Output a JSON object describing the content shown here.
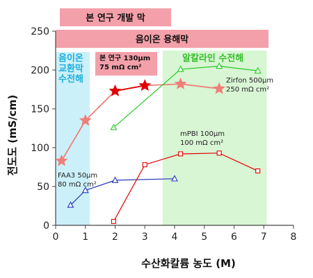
{
  "chart_data": {
    "type": "line",
    "xlabel": "수산화칼륨 농도 (M)",
    "ylabel": "전도도 (mS/cm)",
    "xlim": [
      0,
      8
    ],
    "ylim": [
      0,
      250
    ],
    "xticks": [
      "0",
      "1",
      "2",
      "3",
      "4",
      "5",
      "6",
      "7",
      "8"
    ],
    "yticks": [
      "0",
      "50",
      "100",
      "150",
      "200",
      "250"
    ],
    "bands": [
      {
        "label": "본 연구 개발 막",
        "color": "#f4a0aa"
      },
      {
        "label": "음이온 용해막",
        "color": "#f4a0aa"
      }
    ],
    "regions": [
      {
        "label": [
          "음이온",
          "교환막",
          "수전해"
        ],
        "x_range": [
          0,
          1.15
        ],
        "color": "#ccf0fa",
        "text_color": "#1aaedc"
      },
      {
        "label": [
          "알칼라인 수전해"
        ],
        "x_range": [
          3.6,
          7.1
        ],
        "color": "#d8f5d4",
        "text_color": "#35c02a"
      }
    ],
    "series": [
      {
        "color": "#ef7f78",
        "marker": "star",
        "points": [
          [
            0.2,
            83
          ],
          [
            1.0,
            135
          ],
          [
            2.0,
            173
          ],
          [
            3.0,
            180
          ],
          [
            4.2,
            182
          ],
          [
            5.5,
            176
          ]
        ]
      },
      {
        "color": "#e00000",
        "marker": "star-filled",
        "points": [
          [
            2.0,
            173
          ],
          [
            3.0,
            180
          ]
        ]
      },
      {
        "color": "#22cc22",
        "marker": "triangle",
        "points": [
          [
            1.95,
            126
          ],
          [
            4.2,
            201
          ],
          [
            5.5,
            205
          ],
          [
            6.8,
            199
          ]
        ]
      },
      {
        "color": "#2233bb",
        "marker": "triangle",
        "points": [
          [
            0.5,
            26
          ],
          [
            1.0,
            45
          ],
          [
            2.0,
            58
          ],
          [
            4.0,
            60
          ]
        ]
      },
      {
        "color": "#e00000",
        "marker": "square",
        "points": [
          [
            1.95,
            5
          ],
          [
            3.0,
            78
          ],
          [
            4.2,
            92
          ],
          [
            5.5,
            93
          ],
          [
            6.8,
            70
          ]
        ]
      }
    ],
    "annotations": [
      {
        "lines": [
          "본 연구 130μm",
          "75 mΩ cm²"
        ],
        "style": "boxed"
      },
      {
        "lines": [
          "Zirfon 500μm",
          "250 mΩ cm²"
        ]
      },
      {
        "lines": [
          "mPBI 100μm",
          "100 mΩ cm²"
        ]
      },
      {
        "lines": [
          "FAA3 50μm",
          "80 mΩ cm²"
        ]
      }
    ],
    "grid": false
  }
}
